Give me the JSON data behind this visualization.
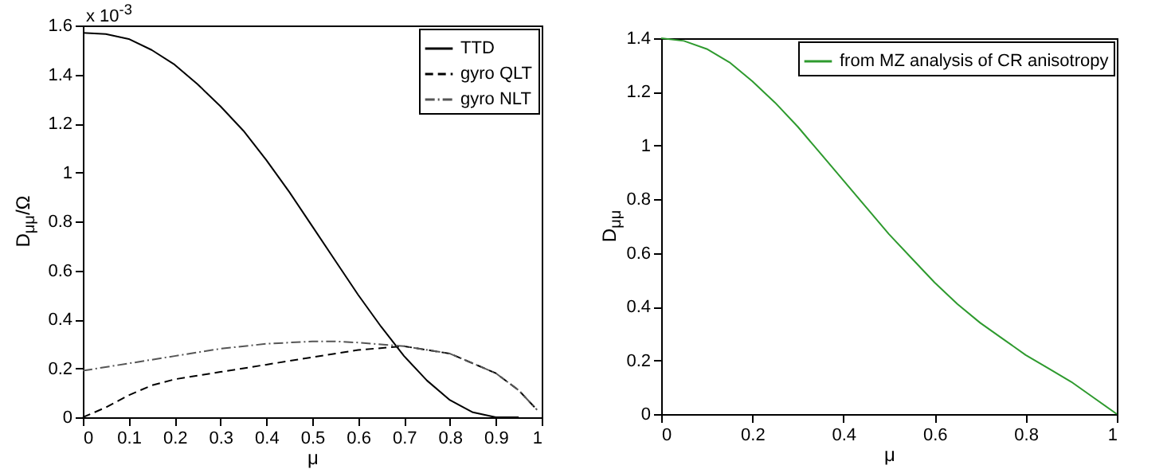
{
  "chart_data": [
    {
      "type": "line",
      "xlabel": "μ",
      "ylabel": "D$_{μμ}$/Ω",
      "annotations": [
        "x 10$^{-3}$"
      ],
      "xlim": [
        0,
        1
      ],
      "ylim": [
        0,
        1.6
      ],
      "xticks": [
        0,
        0.1,
        0.2,
        0.3,
        0.4,
        0.5,
        0.6,
        0.7,
        0.8,
        0.9,
        1
      ],
      "yticks": [
        0,
        0.2,
        0.4,
        0.6,
        0.8,
        1,
        1.2,
        1.4,
        1.6
      ],
      "grid": false,
      "legend": "top right",
      "series": [
        {
          "name": "TTD",
          "color": "#000000",
          "line_style": "solid",
          "x": [
            0,
            0.05,
            0.1,
            0.15,
            0.2,
            0.25,
            0.3,
            0.35,
            0.4,
            0.45,
            0.5,
            0.55,
            0.6,
            0.65,
            0.7,
            0.75,
            0.8,
            0.85,
            0.9,
            0.95
          ],
          "values": [
            1.57,
            1.565,
            1.545,
            1.5,
            1.44,
            1.36,
            1.27,
            1.17,
            1.05,
            0.92,
            0.78,
            0.64,
            0.5,
            0.37,
            0.25,
            0.15,
            0.07,
            0.02,
            0,
            0
          ]
        },
        {
          "name": "gyro QLT",
          "color": "#000000",
          "line_style": "dashed",
          "x": [
            0,
            0.05,
            0.1,
            0.15,
            0.2,
            0.3,
            0.4,
            0.5,
            0.6,
            0.7,
            0.8,
            0.9,
            0.95,
            0.99
          ],
          "values": [
            0,
            0.04,
            0.09,
            0.13,
            0.155,
            0.185,
            0.215,
            0.245,
            0.275,
            0.29,
            0.26,
            0.18,
            0.11,
            0.03
          ]
        },
        {
          "name": "gyro NLT",
          "color": "#555555",
          "line_style": "dashdot",
          "x": [
            0,
            0.1,
            0.2,
            0.3,
            0.4,
            0.5,
            0.55,
            0.6,
            0.7,
            0.8,
            0.9,
            0.95,
            0.99
          ],
          "values": [
            0.19,
            0.22,
            0.25,
            0.28,
            0.3,
            0.31,
            0.31,
            0.305,
            0.29,
            0.26,
            0.18,
            0.11,
            0.03
          ]
        }
      ]
    },
    {
      "type": "line",
      "xlabel": "μ",
      "ylabel": "D$_{μμ}$",
      "xlim": [
        0,
        1
      ],
      "ylim": [
        0,
        1.4
      ],
      "xticks": [
        0,
        0.2,
        0.4,
        0.6,
        0.8,
        1
      ],
      "yticks": [
        0,
        0.2,
        0.4,
        0.6,
        0.8,
        1,
        1.2,
        1.4
      ],
      "grid": false,
      "legend": "top right",
      "series": [
        {
          "name": "from MZ analysis of CR anisotropy",
          "color": "#2e9a2e",
          "line_style": "solid",
          "x": [
            0,
            0.05,
            0.1,
            0.15,
            0.2,
            0.25,
            0.3,
            0.35,
            0.4,
            0.45,
            0.5,
            0.55,
            0.6,
            0.65,
            0.7,
            0.75,
            0.8,
            0.85,
            0.9,
            0.95,
            1
          ],
          "values": [
            1.4,
            1.39,
            1.36,
            1.31,
            1.24,
            1.16,
            1.07,
            0.97,
            0.87,
            0.77,
            0.67,
            0.58,
            0.49,
            0.41,
            0.34,
            0.28,
            0.22,
            0.17,
            0.12,
            0.06,
            0
          ]
        }
      ]
    }
  ]
}
